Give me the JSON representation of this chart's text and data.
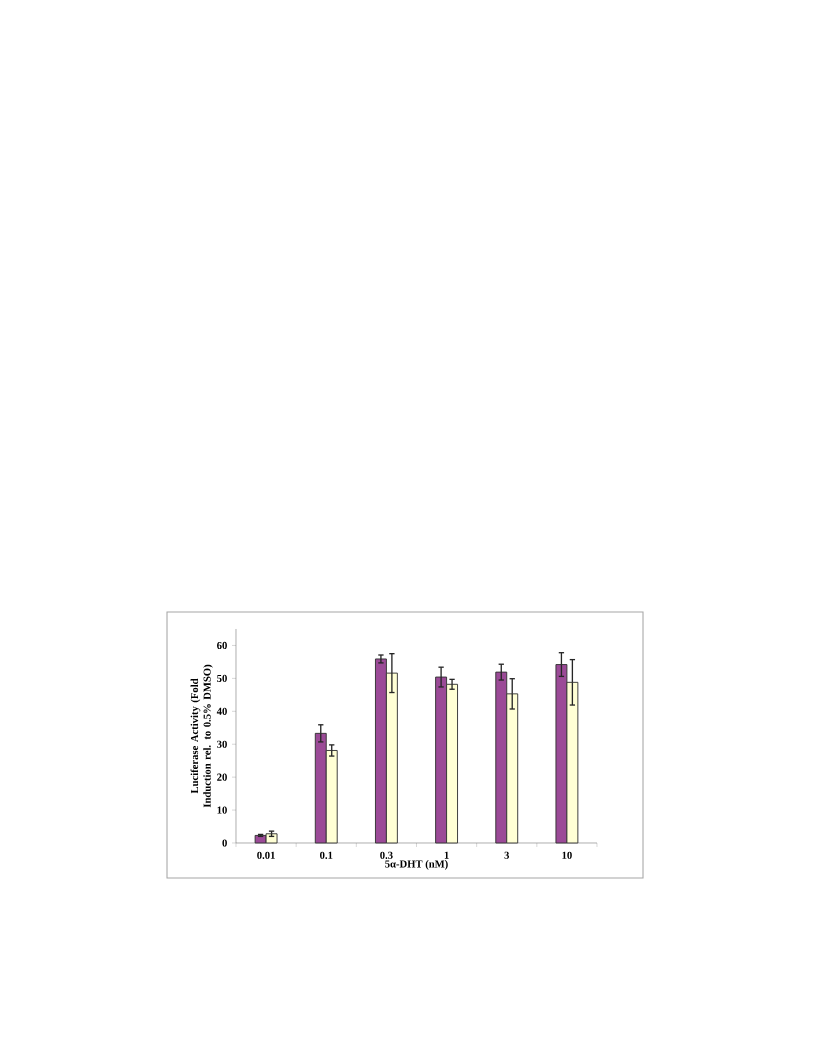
{
  "chart_data": {
    "type": "bar",
    "xlabel": "5α-DHT (nM)",
    "ylabel": "Luciferase Activity (Fold Induction rel. to 0.5% DMSO)",
    "categories": [
      "0.01",
      "0.1",
      "0.3",
      "1",
      "3",
      "10"
    ],
    "series": [
      {
        "color": "#9b4a97",
        "values": [
          2.3,
          33.3,
          55.9,
          50.4,
          51.9,
          54.2
        ],
        "errors": [
          0.3,
          2.6,
          1.2,
          3.0,
          2.4,
          3.6
        ]
      },
      {
        "color": "#ffffd5",
        "values": [
          2.8,
          28.1,
          51.6,
          48.2,
          45.3,
          48.8
        ],
        "errors": [
          0.8,
          1.7,
          5.9,
          1.5,
          4.6,
          6.9
        ]
      }
    ],
    "ylim": [
      0,
      65
    ],
    "yticks": [
      0,
      10,
      20,
      30,
      40,
      50,
      60
    ],
    "grid": false
  }
}
